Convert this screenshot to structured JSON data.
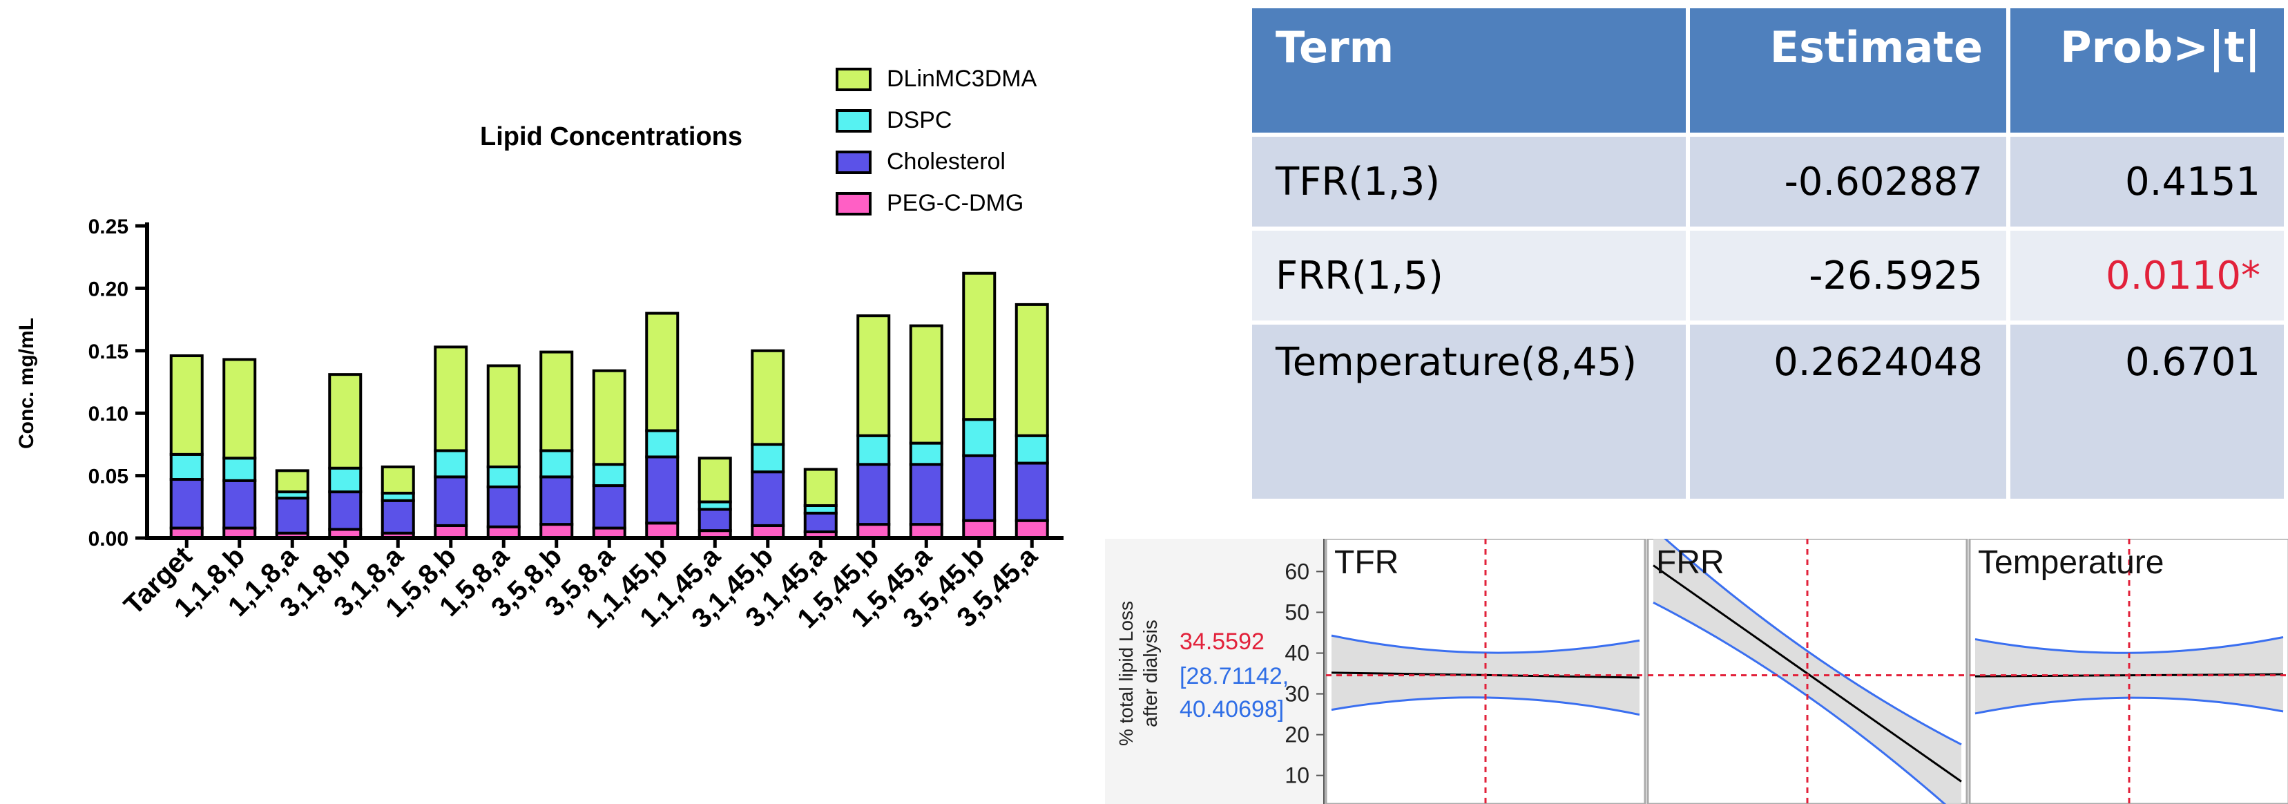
{
  "chart_data": [
    {
      "type": "bar",
      "stacked": true,
      "title": "Lipid Concentrations",
      "ylabel": "Conc. mg/mL",
      "xlabel": "",
      "ylim": [
        0,
        0.25
      ],
      "yticks": [
        "0.00",
        "0.05",
        "0.10",
        "0.15",
        "0.20",
        "0.25"
      ],
      "legend_position": "top-right",
      "categories": [
        "Target",
        "1,1,8,b",
        "1,1,8,a",
        "3,1,8,b",
        "3,1,8,a",
        "1,5,8,b",
        "1,5,8,a",
        "3,5,8,b",
        "3,5,8,a",
        "1,1,45,b",
        "1,1,45,a",
        "3,1,45,b",
        "3,1,45,a",
        "1,5,45,b",
        "1,5,45,a",
        "3,5,45,b",
        "3,5,45,a"
      ],
      "series": [
        {
          "name": "PEG-C-DMG",
          "color": "#ff5fc5",
          "values": [
            0.008,
            0.008,
            0.004,
            0.007,
            0.004,
            0.01,
            0.009,
            0.011,
            0.008,
            0.012,
            0.006,
            0.01,
            0.005,
            0.011,
            0.011,
            0.014,
            0.014
          ]
        },
        {
          "name": "Cholesterol",
          "color": "#5b52e8",
          "values": [
            0.039,
            0.038,
            0.028,
            0.03,
            0.026,
            0.039,
            0.032,
            0.038,
            0.034,
            0.053,
            0.017,
            0.043,
            0.015,
            0.048,
            0.048,
            0.052,
            0.046
          ]
        },
        {
          "name": "DSPC",
          "color": "#56f2f2",
          "values": [
            0.02,
            0.018,
            0.005,
            0.019,
            0.006,
            0.021,
            0.016,
            0.021,
            0.017,
            0.021,
            0.006,
            0.022,
            0.006,
            0.023,
            0.017,
            0.029,
            0.022
          ]
        },
        {
          "name": "DLinMC3DMA",
          "color": "#ccf566",
          "values": [
            0.079,
            0.079,
            0.017,
            0.075,
            0.021,
            0.083,
            0.081,
            0.079,
            0.075,
            0.094,
            0.035,
            0.075,
            0.029,
            0.096,
            0.094,
            0.117,
            0.105
          ]
        }
      ],
      "legend_order": [
        "DLinMC3DMA",
        "DSPC",
        "Cholesterol",
        "PEG-C-DMG"
      ]
    },
    {
      "type": "line",
      "panels": [
        {
          "label": "TFR",
          "x": [
            0,
            1
          ],
          "y": [
            35.2,
            34.0
          ]
        },
        {
          "label": "FRR",
          "x": [
            0,
            1
          ],
          "y": [
            61.5,
            8.5
          ]
        },
        {
          "label": "Temperature",
          "x": [
            0,
            1
          ],
          "y": [
            34.3,
            34.8
          ]
        }
      ],
      "ylabel": "% total lipid Loss after dialysis",
      "yticks": [
        "10",
        "20",
        "30",
        "40",
        "50",
        "60"
      ],
      "ylim": [
        3,
        66
      ],
      "current_value": "34.5592",
      "ci_text": "[28.71142,",
      "ci_text_2": "40.40698]",
      "current_y": 34.5592,
      "colors": {
        "fit": "#000000",
        "ci_band": "#d8d8d8",
        "ci_line": "#3a6ff0",
        "crosshair": "#e2213a",
        "value": "#e2213a",
        "interval": "#2f6ee6"
      }
    }
  ],
  "table": {
    "headers": [
      "Term",
      "Estimate",
      "Prob>|t|"
    ],
    "rows": [
      {
        "term": "TFR(1,3)",
        "estimate": "-0.602887",
        "prob": "0.4151",
        "prob_star": ""
      },
      {
        "term": "FRR(1,5)",
        "estimate": "-26.5925",
        "prob": "0.0110",
        "prob_star": "*"
      },
      {
        "term": "Temperature(8,45)",
        "estimate": "0.2624048",
        "prob": "0.6701",
        "prob_star": ""
      }
    ],
    "colors": {
      "header": "#4f80bd",
      "row_dark": "#d0d8e8",
      "row_light": "#e9edf4",
      "significant": "#e2213a"
    }
  }
}
